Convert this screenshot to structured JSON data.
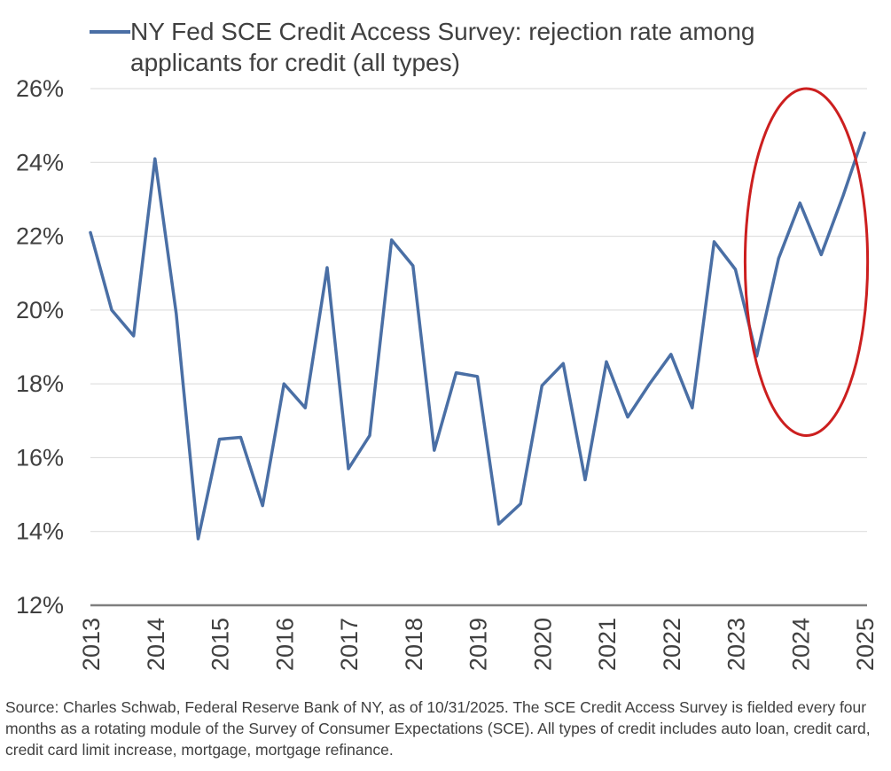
{
  "chart_data": {
    "type": "line",
    "legend": [
      "NY Fed SCE Credit Access Survey: rejection rate among",
      "applicants for credit (all types)"
    ],
    "series": [
      {
        "name": "NY Fed SCE Credit Access Survey: rejection rate among applicants for credit (all types)",
        "color": "#4a6fa5",
        "x": [
          2013.0,
          2013.33,
          2013.67,
          2014.0,
          2014.33,
          2014.67,
          2015.0,
          2015.33,
          2015.67,
          2016.0,
          2016.33,
          2016.67,
          2017.0,
          2017.33,
          2017.67,
          2018.0,
          2018.33,
          2018.67,
          2019.0,
          2019.33,
          2019.67,
          2020.0,
          2020.33,
          2020.67,
          2021.0,
          2021.33,
          2021.67,
          2022.0,
          2022.33,
          2022.67,
          2023.0,
          2023.33,
          2023.67,
          2024.0,
          2024.33,
          2024.67,
          2025.0
        ],
        "values": [
          22.1,
          20.0,
          19.3,
          24.1,
          19.9,
          13.8,
          16.5,
          16.55,
          14.7,
          18.0,
          17.35,
          21.15,
          15.7,
          16.6,
          21.9,
          21.2,
          16.2,
          18.3,
          18.2,
          14.2,
          14.75,
          17.95,
          18.55,
          15.4,
          18.6,
          17.1,
          18.0,
          18.8,
          17.35,
          21.85,
          21.1,
          18.75,
          21.4,
          22.9,
          21.5,
          23.1,
          24.8
        ]
      }
    ],
    "categories": [
      "2013",
      "2014",
      "2015",
      "2016",
      "2017",
      "2018",
      "2019",
      "2020",
      "2021",
      "2022",
      "2023",
      "2024",
      "2025"
    ],
    "yticks": [
      "12%",
      "14%",
      "16%",
      "18%",
      "20%",
      "22%",
      "24%",
      "26%"
    ],
    "ylim": [
      12,
      26
    ],
    "xlim": [
      2013,
      2025
    ],
    "grid": "horizontal",
    "annotation": {
      "type": "ellipse",
      "color": "#cc1f1f",
      "x_range": [
        2023.15,
        2025.05
      ],
      "y_range": [
        16.6,
        26.0
      ]
    }
  },
  "source": "Source: Charles Schwab, Federal Reserve Bank of NY, as of 10/31/2025. The SCE Credit Access Survey is fielded every four months as a rotating module of the Survey of Consumer Expectations (SCE).  All types of credit includes auto loan, credit card, credit card limit increase, mortgage, mortgage refinance."
}
